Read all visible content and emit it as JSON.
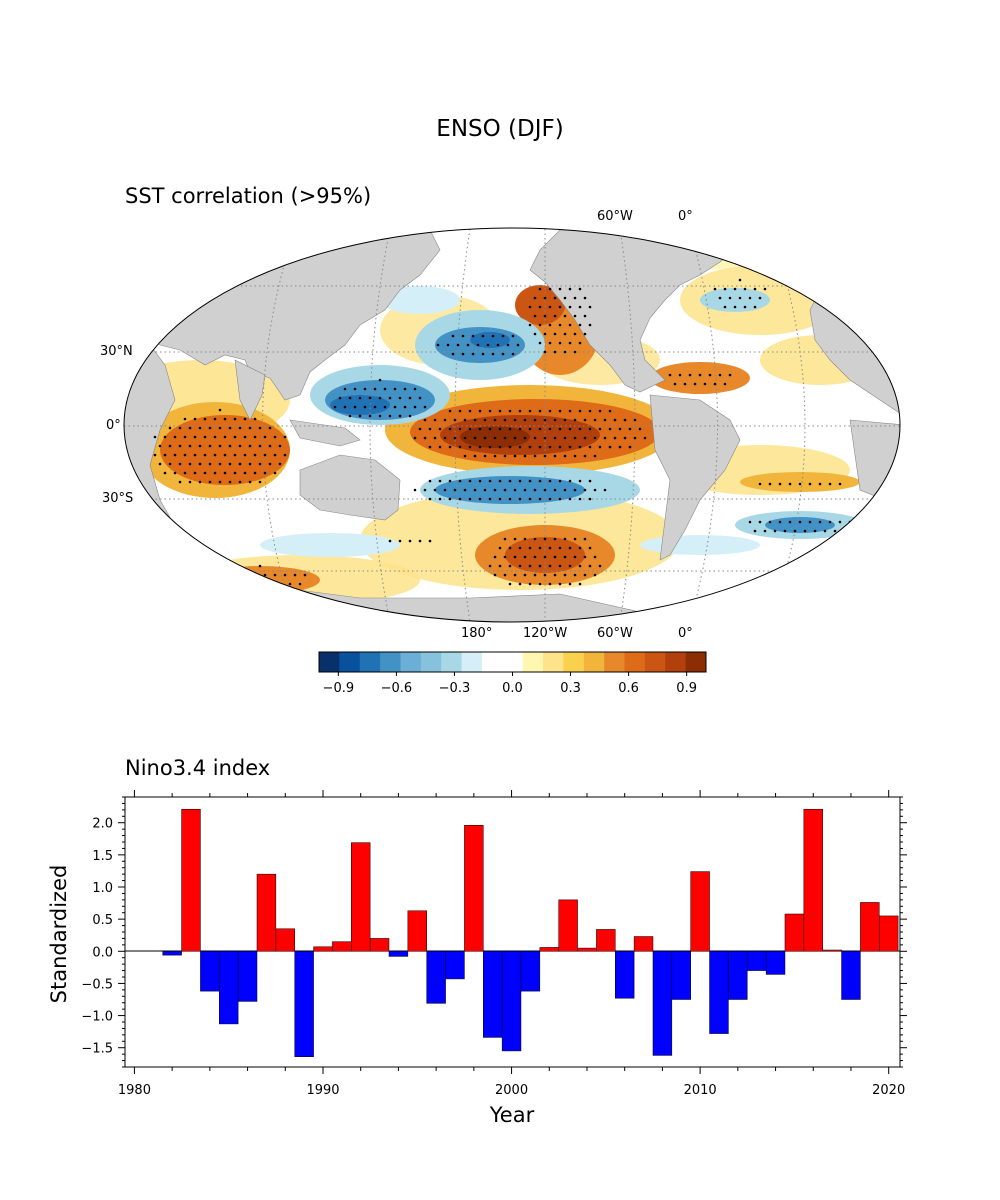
{
  "figure": {
    "title": "ENSO (DJF)"
  },
  "map": {
    "subtitle": "SST correlation (>95%)",
    "lat_labels": [
      "30°N",
      "0°",
      "30°S"
    ],
    "lon_labels_top": [
      "60°W",
      "0°"
    ],
    "lon_labels_bottom": [
      "180°",
      "120°W",
      "60°W",
      "0°"
    ],
    "land_color": "#d0d0d0",
    "colorbar": {
      "ticks": [
        "−0.9",
        "−0.6",
        "−0.3",
        "0.0",
        "0.3",
        "0.6",
        "0.9"
      ],
      "colors": [
        "#08306b",
        "#08519c",
        "#2171b5",
        "#4292c6",
        "#6baed6",
        "#87c2dc",
        "#a8d8e6",
        "#d4eff8",
        "#ffffff",
        "#ffffff",
        "#fff6b0",
        "#fde38a",
        "#f9d14e",
        "#f2b53c",
        "#e7892a",
        "#dd6b17",
        "#cb5512",
        "#b1400c",
        "#8c2d04"
      ]
    }
  },
  "chart_data": {
    "type": "bar",
    "title": "Nino3.4 index",
    "xlabel": "Year",
    "ylabel": "Standardized",
    "x": [
      1982,
      1983,
      1984,
      1985,
      1986,
      1987,
      1988,
      1989,
      1990,
      1991,
      1992,
      1993,
      1994,
      1995,
      1996,
      1997,
      1998,
      1999,
      2000,
      2001,
      2002,
      2003,
      2004,
      2005,
      2006,
      2007,
      2008,
      2009,
      2010,
      2011,
      2012,
      2013,
      2014,
      2015,
      2016,
      2017,
      2018,
      2019,
      2020
    ],
    "values": [
      -0.06,
      2.21,
      -0.62,
      -1.13,
      -0.78,
      1.2,
      0.35,
      -1.64,
      0.07,
      0.15,
      1.69,
      0.2,
      -0.08,
      0.63,
      -0.81,
      -0.43,
      1.96,
      -1.34,
      -1.55,
      -0.62,
      0.06,
      0.8,
      0.05,
      0.34,
      -0.73,
      0.23,
      -1.62,
      -0.75,
      1.24,
      -1.28,
      -0.75,
      -0.3,
      -0.36,
      0.58,
      2.21,
      0.02,
      -0.75,
      0.76,
      0.55
    ],
    "xlim": [
      1979.5,
      2020.6
    ],
    "ylim": [
      -1.8,
      2.4
    ],
    "xticks": [
      1980,
      1990,
      2000,
      2010,
      2020
    ],
    "yticks": [
      -1.5,
      -1.0,
      -0.5,
      0.0,
      0.5,
      1.0,
      1.5,
      2.0
    ],
    "ytick_labels": [
      "−1.5",
      "−1.0",
      "−0.5",
      "0.0",
      "0.5",
      "1.0",
      "1.5",
      "2.0"
    ],
    "positive_color": "#ff0000",
    "negative_color": "#0000ff"
  }
}
